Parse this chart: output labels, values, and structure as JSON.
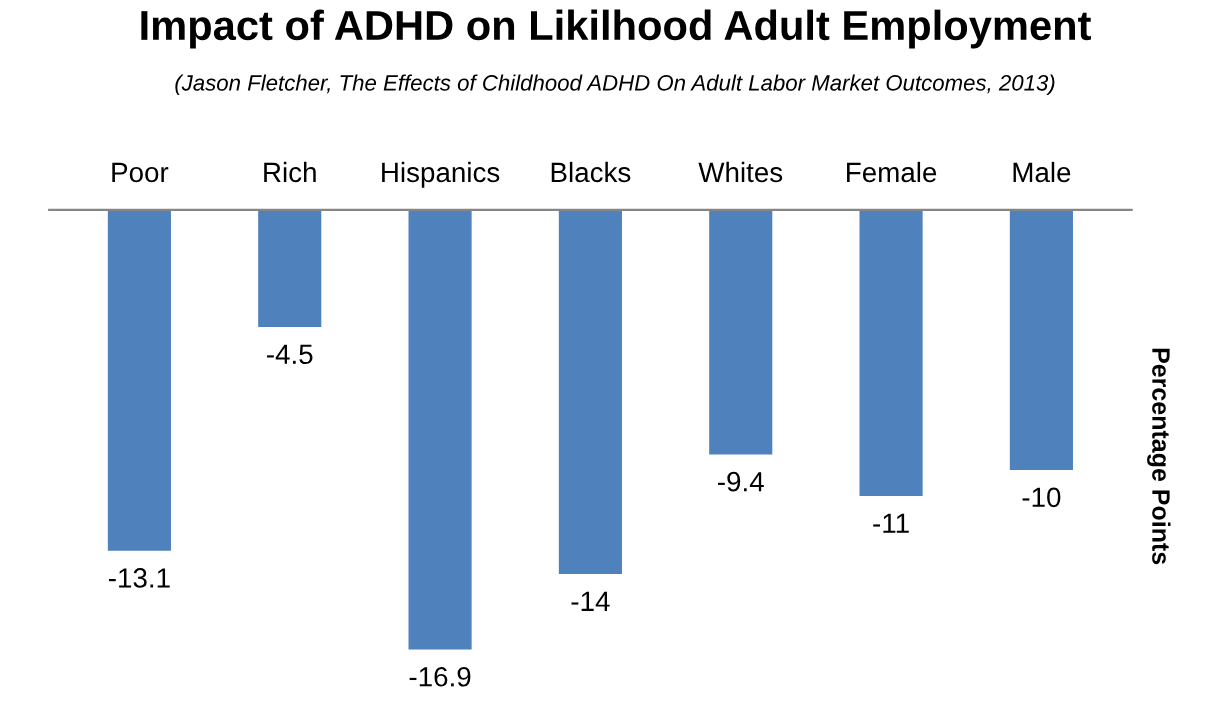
{
  "chart_data": {
    "type": "bar",
    "title": "Impact of ADHD on Likilhood Adult Employment",
    "subtitle": "(Jason Fletcher, The Effects of Childhood ADHD On Adult Labor Market Outcomes, 2013)",
    "ylabel": "Percentage Points",
    "categories": [
      "Poor",
      "Rich",
      "Hispanics",
      "Blacks",
      "Whites",
      "Female",
      "Male"
    ],
    "values": [
      -13.1,
      -4.5,
      -16.9,
      -14,
      -9.4,
      -11,
      -10
    ],
    "color": "#4f81bd",
    "data_labels": true,
    "grid": false,
    "legend": false,
    "tick_labels": "x"
  }
}
